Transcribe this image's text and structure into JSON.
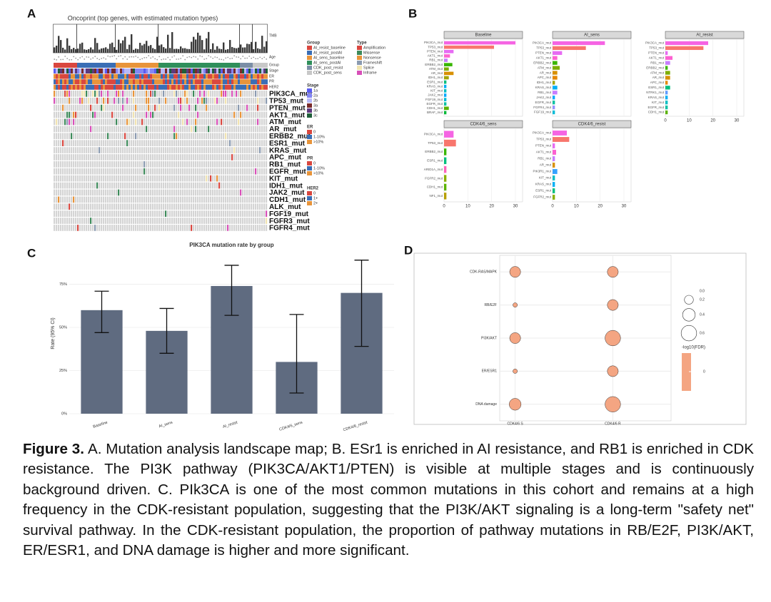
{
  "panel_labels": {
    "a": "A",
    "b": "B",
    "c": "C",
    "d": "D"
  },
  "panel_a": {
    "title": "Oncoprint (top genes, with estimated mutation types)",
    "track_labels": [
      "TMB",
      "Age",
      "Group",
      "Stage",
      "ER",
      "PR",
      "HER2"
    ],
    "genes": [
      "PIK3CA_mut",
      "TP53_mut",
      "PTEN_mut",
      "AKT1_mut",
      "ATM_mut",
      "AR_mut",
      "ERBB2_mut",
      "ESR1_mut",
      "KRAS_mut",
      "APC_mut",
      "RB1_mut",
      "EGFR_mut",
      "KIT_mut",
      "IDH1_mut",
      "JAK2_mut",
      "CDH1_mut",
      "ALK_mut",
      "FGF19_mut",
      "FGFR3_mut",
      "FGFR4_mut"
    ],
    "legends": [
      {
        "title": "Group",
        "items": [
          {
            "label": "AI_resist_baseline",
            "color": "#d9473f"
          },
          {
            "label": "AI_resist_postAI",
            "color": "#3a6eb5"
          },
          {
            "label": "AI_sens_baseline",
            "color": "#e8943a"
          },
          {
            "label": "AI_sens_postAI",
            "color": "#2f8f5b"
          },
          {
            "label": "CDK_post_resist",
            "color": "#7b8ea6"
          },
          {
            "label": "CDK_post_sens",
            "color": "#c8c8c8"
          }
        ]
      },
      {
        "title": "Type",
        "items": [
          {
            "label": "Amplification",
            "color": "#d9473f"
          },
          {
            "label": "Missense",
            "color": "#3d8a5a"
          },
          {
            "label": "Nonsense",
            "color": "#e8943a"
          },
          {
            "label": "Frameshift",
            "color": "#8a9ab0"
          },
          {
            "label": "Splice",
            "color": "#f1e3b0"
          },
          {
            "label": "Inframe",
            "color": "#d84fb8"
          }
        ]
      },
      {
        "title": "Stage",
        "items": [
          {
            "label": "1a",
            "color": "#5a5cf2"
          },
          {
            "label": "2a",
            "color": "#8486f5"
          },
          {
            "label": "2b",
            "color": "#b8b9f8"
          },
          {
            "label": "3a",
            "color": "#7a2b2b"
          },
          {
            "label": "3b",
            "color": "#5e3a7e"
          },
          {
            "label": "3c",
            "color": "#1f5f3a"
          }
        ]
      },
      {
        "title": "ER",
        "items": [
          {
            "label": "0",
            "color": "#d9473f"
          },
          {
            "label": "1-10%",
            "color": "#3a6eb5"
          },
          {
            "label": ">10%",
            "color": "#e8943a"
          }
        ]
      },
      {
        "title": "PR",
        "items": [
          {
            "label": "0",
            "color": "#d9473f"
          },
          {
            "label": "1-10%",
            "color": "#3a6eb5"
          },
          {
            "label": ">10%",
            "color": "#e8943a"
          }
        ]
      },
      {
        "title": "HER2",
        "items": [
          {
            "label": "0",
            "color": "#d9473f"
          },
          {
            "label": "1+",
            "color": "#3a6eb5"
          },
          {
            "label": "2+",
            "color": "#e8943a"
          }
        ]
      }
    ]
  },
  "chart_data": [
    {
      "type": "barh",
      "xlim": [
        0,
        33
      ],
      "xticks": [
        0,
        10,
        20,
        30
      ],
      "gene_colors": {
        "PIK3CA_mut": "#f564e3",
        "TP53_mut": "#f8766d",
        "PTEN_mut": "#e76bf3",
        "AKT1_mut": "#fd61d1",
        "RB1_mut": "#c77cff",
        "ERBB2_mut": "#39b600",
        "ATM_mut": "#7cae00",
        "AR_mut": "#d89000",
        "IDH1_mut": "#a3a500",
        "ESR1_mut": "#00bf7d",
        "KRAS_mut": "#00b0f6",
        "KIT_mut": "#00bfc4",
        "JAK2_mut": "#00a9ff",
        "FGF19_mut": "#00bcd8",
        "EGFR_mut": "#00c1a3",
        "CDH1_mut": "#5bb300",
        "BRAF_mut": "#00ba38",
        "APC_mut": "#e58700",
        "FGFR4_mut": "#9590ff",
        "NTRK1_mut": "#619cff",
        "ARID1A_mut": "#ff62bc",
        "FGFR2_mut": "#8ab000",
        "NF1_mut": "#b79f00",
        "PIK3R1_mut": "#35a2ff"
      },
      "facets": [
        {
          "name": "Baseline",
          "genes": [
            "PIK3CA_mut",
            "TP53_mut",
            "PTEN_mut",
            "AKT1_mut",
            "RB1_mut",
            "ERBB2_mut",
            "ATM_mut",
            "AR_mut",
            "IDH1_mut",
            "ESR1_mut",
            "KRAS_mut",
            "KIT_mut",
            "JAK2_mut",
            "FGF19_mut",
            "EGFR_mut",
            "CDH1_mut",
            "BRAF_mut"
          ],
          "values": [
            30,
            21,
            4,
            2.5,
            1.5,
            3.5,
            2,
            4,
            2,
            1,
            1,
            1,
            1,
            1,
            1,
            2,
            1
          ]
        },
        {
          "name": "AI_sens",
          "genes": [
            "PIK3CA_mut",
            "TP53_mut",
            "PTEN_mut",
            "AKT1_mut",
            "ERBB2_mut",
            "ATM_mut",
            "AR_mut",
            "APC_mut",
            "IDH1_mut",
            "KRAS_mut",
            "RB1_mut",
            "JAK2_mut",
            "EGFR_mut",
            "FGFR4_mut",
            "FGF19_mut"
          ],
          "values": [
            22,
            14,
            4,
            2,
            2,
            3,
            2,
            2,
            1,
            2,
            2,
            1,
            1,
            1,
            1
          ]
        },
        {
          "name": "AI_resist",
          "genes": [
            "PIK3CA_mut",
            "TP53_mut",
            "PTEN_mut",
            "AKT1_mut",
            "RB1_mut",
            "ERBB2_mut",
            "ATM_mut",
            "AR_mut",
            "APC_mut",
            "ESR1_mut",
            "NTRK1_mut",
            "KRAS_mut",
            "KIT_mut",
            "EGFR_mut",
            "CDH1_mut"
          ],
          "values": [
            18,
            16,
            1,
            3,
            2,
            1,
            2,
            2,
            1,
            2,
            1,
            1,
            1,
            1,
            1
          ]
        },
        {
          "name": "CDK4/6_sens",
          "genes": [
            "PIK3CA_mut",
            "TP53_mut",
            "ERBB2_mut",
            "ESR1_mut",
            "ARID1A_mut",
            "FGFR2_mut",
            "CDH1_mut",
            "NF1_mut"
          ],
          "values": [
            4,
            5,
            1,
            1,
            1,
            1,
            1,
            1
          ]
        },
        {
          "name": "CDK4/6_resist",
          "genes": [
            "PIK3CA_mut",
            "TP53_mut",
            "PTEN_mut",
            "AKT1_mut",
            "RB1_mut",
            "AR_mut",
            "PIK3R1_mut",
            "KIT_mut",
            "KRAS_mut",
            "ESR1_mut",
            "FGFR2_mut"
          ],
          "values": [
            6,
            7,
            1,
            1.5,
            1,
            1,
            2,
            1,
            1,
            1,
            1
          ]
        }
      ]
    },
    {
      "type": "bar",
      "title": "PIK3CA mutation rate by group",
      "ylabel": "Rate (95% CI)",
      "categories": [
        "Baseline",
        "AI_sens",
        "AI_resist",
        "CDK4/6_sens",
        "CDK4/6_resist"
      ],
      "values": [
        0.6,
        0.48,
        0.74,
        0.3,
        0.7
      ],
      "ci_low": [
        0.47,
        0.35,
        0.57,
        0.12,
        0.39
      ],
      "ci_high": [
        0.71,
        0.61,
        0.86,
        0.575,
        0.89
      ],
      "color": "#5f6b80",
      "ylim": [
        0,
        0.93
      ],
      "yticks": [
        {
          "value": 0,
          "label": "0%"
        },
        {
          "value": 0.25,
          "label": "25%"
        },
        {
          "value": 0.5,
          "label": "50%"
        },
        {
          "value": 0.75,
          "label": "75%"
        }
      ],
      "grid": true
    },
    {
      "type": "dot",
      "categories": [
        "CDK-RAS/MAPK",
        "RB/E2F",
        "PI3K/AKT",
        "ER/ESR1",
        "DNA damage"
      ],
      "x_categories": [
        "CDK4/6 S",
        "CDK4/6 R"
      ],
      "sizes": [
        [
          0.3,
          0.05,
          0.3,
          0.05,
          0.35
        ],
        [
          0.3,
          0.3,
          0.6,
          0.3,
          0.6
        ]
      ],
      "color": "#f4a582",
      "size_legend": {
        "ticks": [
          {
            "value": 0,
            "label": "0.0"
          },
          0.2,
          0.4,
          0.6
        ]
      },
      "color_legend": {
        "title": "-log10(FDR)",
        "ticks": [
          0
        ]
      }
    }
  ],
  "caption": {
    "label": "Figure 3.",
    "text": "A. Mutation analysis landscape map; B. ESr1 is enriched in AI resistance, and RB1 is enriched in CDK resistance. The PI3K pathway (PIK3CA/AKT1/PTEN) is visible at multiple stages and is continuously background driven. C. PIk3CA is one of the most common mutations in this cohort and remains at a high frequency in the CDK-resistant population, suggesting that the PI3K/AKT signaling is a long-term \"safety net\" survival pathway. In the CDK-resistant population, the proportion of pathway mutations in RB/E2F, PI3K/AKT, ER/ESR1, and DNA damage is higher and more significant."
  }
}
